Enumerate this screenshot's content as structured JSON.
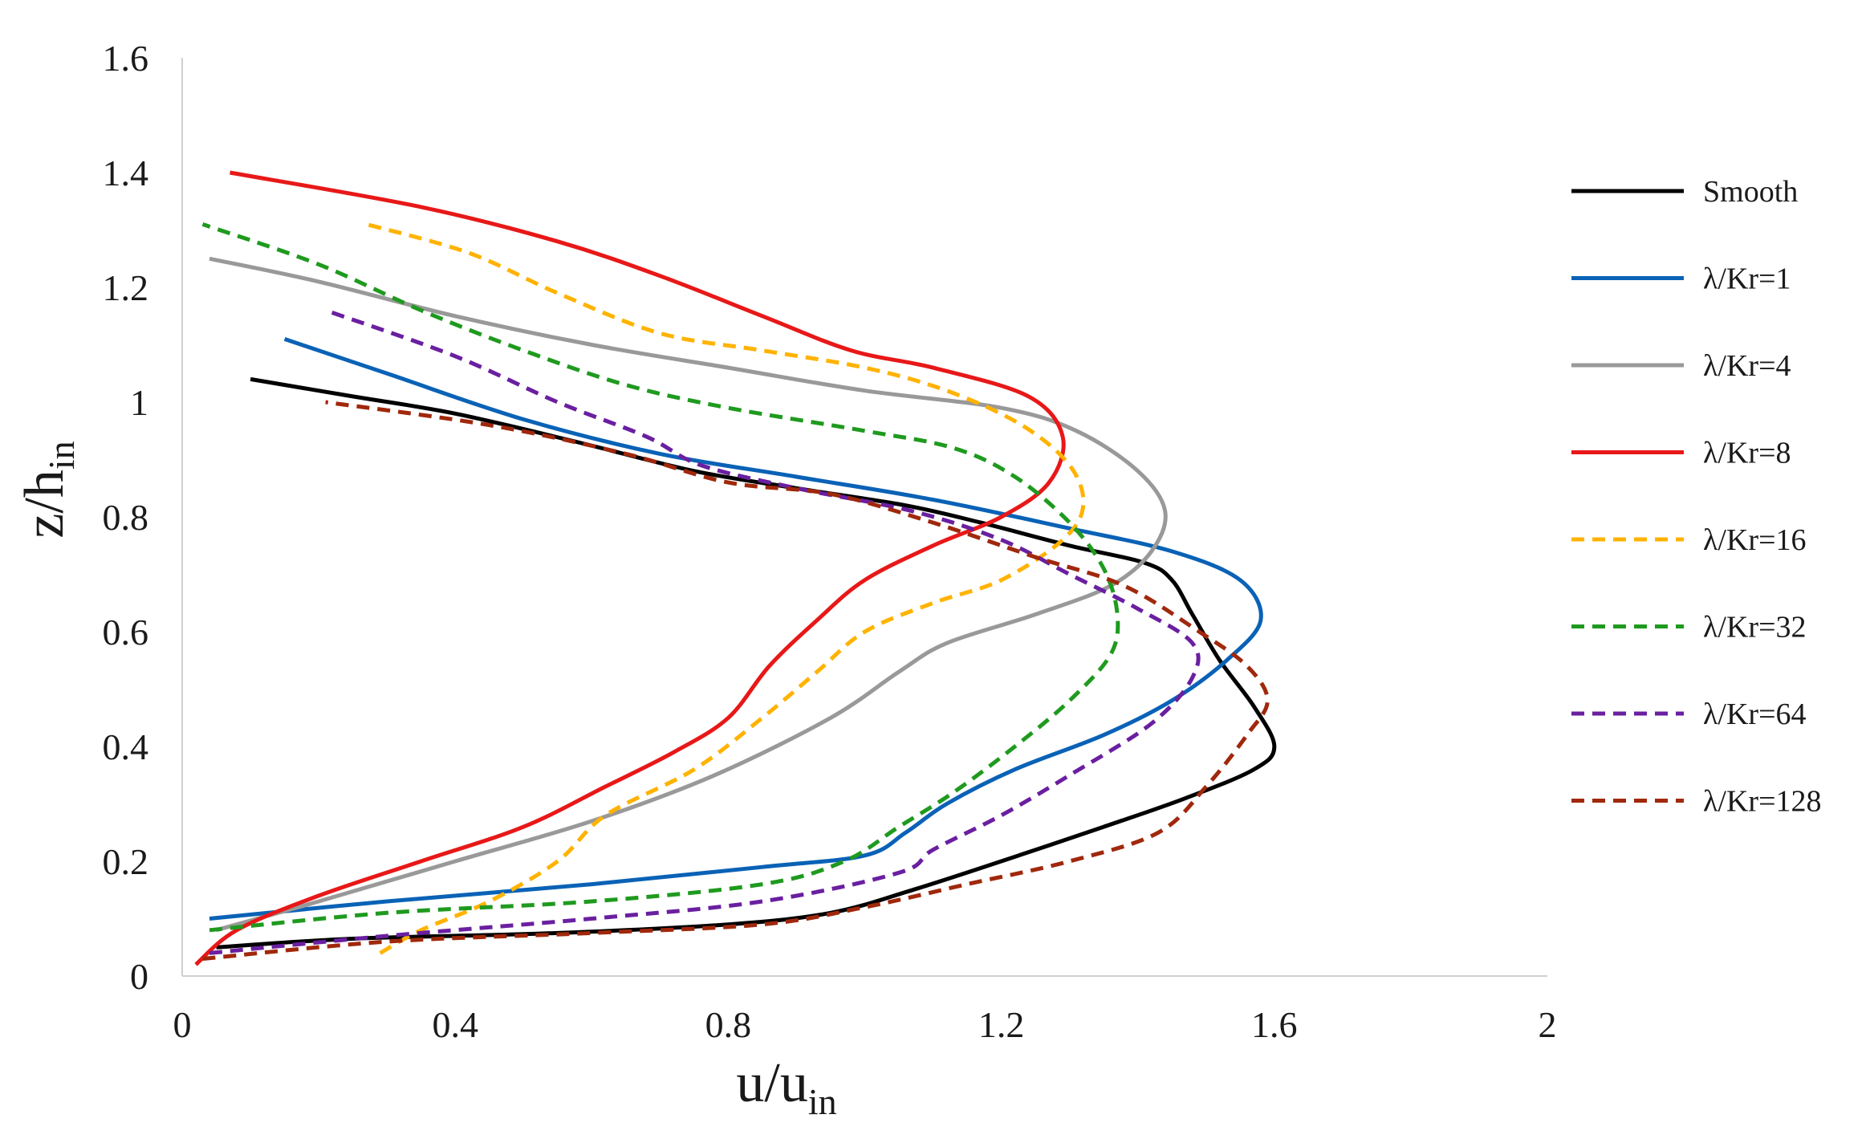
{
  "chart_data": {
    "type": "line",
    "title": "",
    "xlabel": "u/u",
    "xlabel_subscript": "in",
    "ylabel": "z/h",
    "ylabel_subscript": "in",
    "xlim": [
      0,
      2
    ],
    "ylim": [
      0,
      1.6
    ],
    "xticks": [
      "0",
      "0.4",
      "0.8",
      "1.2",
      "1.6",
      "2"
    ],
    "yticks": [
      "0",
      "0.2",
      "0.4",
      "0.6",
      "0.8",
      "1",
      "1.2",
      "1.4",
      "1.6"
    ],
    "grid": false,
    "legend_position": "right",
    "series": [
      {
        "name": "Smooth",
        "color": "#000000",
        "dash": "solid",
        "points": [
          [
            0.05,
            0.05
          ],
          [
            0.25,
            0.065
          ],
          [
            0.55,
            0.075
          ],
          [
            0.8,
            0.09
          ],
          [
            0.95,
            0.11
          ],
          [
            1.07,
            0.15
          ],
          [
            1.2,
            0.2
          ],
          [
            1.35,
            0.26
          ],
          [
            1.47,
            0.31
          ],
          [
            1.57,
            0.36
          ],
          [
            1.6,
            0.4
          ],
          [
            1.57,
            0.47
          ],
          [
            1.52,
            0.55
          ],
          [
            1.48,
            0.63
          ],
          [
            1.45,
            0.69
          ],
          [
            1.41,
            0.72
          ],
          [
            1.3,
            0.75
          ],
          [
            1.17,
            0.79
          ],
          [
            1.06,
            0.82
          ],
          [
            0.9,
            0.85
          ],
          [
            0.75,
            0.88
          ],
          [
            0.58,
            0.93
          ],
          [
            0.4,
            0.98
          ],
          [
            0.25,
            1.01
          ],
          [
            0.1,
            1.04
          ]
        ]
      },
      {
        "name": "λ/Kr=1",
        "color": "#0a62b6",
        "dash": "solid",
        "points": [
          [
            0.04,
            0.1
          ],
          [
            0.3,
            0.13
          ],
          [
            0.6,
            0.16
          ],
          [
            0.85,
            0.19
          ],
          [
            1.0,
            0.21
          ],
          [
            1.06,
            0.25
          ],
          [
            1.12,
            0.3
          ],
          [
            1.22,
            0.36
          ],
          [
            1.35,
            0.42
          ],
          [
            1.45,
            0.48
          ],
          [
            1.53,
            0.55
          ],
          [
            1.58,
            0.62
          ],
          [
            1.55,
            0.69
          ],
          [
            1.45,
            0.74
          ],
          [
            1.3,
            0.78
          ],
          [
            1.1,
            0.83
          ],
          [
            0.9,
            0.87
          ],
          [
            0.7,
            0.91
          ],
          [
            0.5,
            0.97
          ],
          [
            0.3,
            1.05
          ],
          [
            0.15,
            1.11
          ]
        ]
      },
      {
        "name": "λ/Kr=4",
        "color": "#999999",
        "dash": "solid",
        "points": [
          [
            0.05,
            0.08
          ],
          [
            0.2,
            0.13
          ],
          [
            0.4,
            0.2
          ],
          [
            0.6,
            0.27
          ],
          [
            0.78,
            0.35
          ],
          [
            0.95,
            0.45
          ],
          [
            1.05,
            0.53
          ],
          [
            1.12,
            0.58
          ],
          [
            1.25,
            0.63
          ],
          [
            1.36,
            0.68
          ],
          [
            1.42,
            0.74
          ],
          [
            1.44,
            0.81
          ],
          [
            1.4,
            0.88
          ],
          [
            1.31,
            0.95
          ],
          [
            1.2,
            0.99
          ],
          [
            1.0,
            1.02
          ],
          [
            0.8,
            1.06
          ],
          [
            0.6,
            1.1
          ],
          [
            0.4,
            1.15
          ],
          [
            0.2,
            1.21
          ],
          [
            0.04,
            1.25
          ]
        ]
      },
      {
        "name": "λ/Kr=8",
        "color": "#e81818",
        "dash": "solid",
        "points": [
          [
            0.02,
            0.02
          ],
          [
            0.08,
            0.08
          ],
          [
            0.2,
            0.14
          ],
          [
            0.35,
            0.2
          ],
          [
            0.5,
            0.26
          ],
          [
            0.62,
            0.33
          ],
          [
            0.72,
            0.39
          ],
          [
            0.8,
            0.45
          ],
          [
            0.86,
            0.54
          ],
          [
            0.93,
            0.62
          ],
          [
            1.0,
            0.69
          ],
          [
            1.1,
            0.75
          ],
          [
            1.2,
            0.8
          ],
          [
            1.27,
            0.86
          ],
          [
            1.29,
            0.94
          ],
          [
            1.24,
            1.01
          ],
          [
            1.1,
            1.06
          ],
          [
            0.98,
            1.09
          ],
          [
            0.85,
            1.15
          ],
          [
            0.7,
            1.22
          ],
          [
            0.55,
            1.28
          ],
          [
            0.35,
            1.34
          ],
          [
            0.07,
            1.4
          ]
        ]
      },
      {
        "name": "λ/Kr=16",
        "color": "#ffb300",
        "dash": "dashed",
        "points": [
          [
            0.29,
            0.04
          ],
          [
            0.35,
            0.08
          ],
          [
            0.45,
            0.13
          ],
          [
            0.55,
            0.2
          ],
          [
            0.62,
            0.28
          ],
          [
            0.75,
            0.36
          ],
          [
            0.85,
            0.45
          ],
          [
            0.93,
            0.53
          ],
          [
            1.0,
            0.6
          ],
          [
            1.1,
            0.65
          ],
          [
            1.2,
            0.69
          ],
          [
            1.29,
            0.76
          ],
          [
            1.32,
            0.82
          ],
          [
            1.3,
            0.89
          ],
          [
            1.23,
            0.96
          ],
          [
            1.12,
            1.02
          ],
          [
            1.0,
            1.06
          ],
          [
            0.85,
            1.09
          ],
          [
            0.7,
            1.12
          ],
          [
            0.55,
            1.19
          ],
          [
            0.42,
            1.26
          ],
          [
            0.27,
            1.31
          ]
        ]
      },
      {
        "name": "λ/Kr=32",
        "color": "#1f9a1f",
        "dash": "dashed",
        "points": [
          [
            0.04,
            0.08
          ],
          [
            0.3,
            0.11
          ],
          [
            0.6,
            0.13
          ],
          [
            0.85,
            0.16
          ],
          [
            0.97,
            0.2
          ],
          [
            1.05,
            0.26
          ],
          [
            1.13,
            0.32
          ],
          [
            1.22,
            0.4
          ],
          [
            1.3,
            0.48
          ],
          [
            1.36,
            0.56
          ],
          [
            1.37,
            0.63
          ],
          [
            1.35,
            0.71
          ],
          [
            1.3,
            0.79
          ],
          [
            1.22,
            0.87
          ],
          [
            1.13,
            0.92
          ],
          [
            1.0,
            0.95
          ],
          [
            0.8,
            0.99
          ],
          [
            0.65,
            1.03
          ],
          [
            0.5,
            1.09
          ],
          [
            0.35,
            1.16
          ],
          [
            0.2,
            1.24
          ],
          [
            0.03,
            1.31
          ]
        ]
      },
      {
        "name": "λ/Kr=64",
        "color": "#6a1fa0",
        "dash": "dashed",
        "points": [
          [
            0.04,
            0.04
          ],
          [
            0.3,
            0.07
          ],
          [
            0.6,
            0.1
          ],
          [
            0.85,
            0.13
          ],
          [
            1.05,
            0.18
          ],
          [
            1.1,
            0.22
          ],
          [
            1.2,
            0.28
          ],
          [
            1.3,
            0.35
          ],
          [
            1.42,
            0.44
          ],
          [
            1.48,
            0.52
          ],
          [
            1.48,
            0.58
          ],
          [
            1.4,
            0.64
          ],
          [
            1.3,
            0.7
          ],
          [
            1.2,
            0.76
          ],
          [
            1.07,
            0.81
          ],
          [
            0.9,
            0.85
          ],
          [
            0.76,
            0.89
          ],
          [
            0.68,
            0.94
          ],
          [
            0.55,
            1.0
          ],
          [
            0.4,
            1.08
          ],
          [
            0.21,
            1.16
          ]
        ]
      },
      {
        "name": "λ/Kr=128",
        "color": "#a0280c",
        "dash": "dashed",
        "points": [
          [
            0.03,
            0.03
          ],
          [
            0.3,
            0.06
          ],
          [
            0.6,
            0.075
          ],
          [
            0.85,
            0.09
          ],
          [
            1.0,
            0.12
          ],
          [
            1.15,
            0.16
          ],
          [
            1.3,
            0.2
          ],
          [
            1.43,
            0.25
          ],
          [
            1.5,
            0.33
          ],
          [
            1.56,
            0.42
          ],
          [
            1.59,
            0.48
          ],
          [
            1.56,
            0.54
          ],
          [
            1.49,
            0.6
          ],
          [
            1.38,
            0.68
          ],
          [
            1.25,
            0.73
          ],
          [
            1.1,
            0.79
          ],
          [
            0.95,
            0.84
          ],
          [
            0.8,
            0.86
          ],
          [
            0.65,
            0.91
          ],
          [
            0.45,
            0.96
          ],
          [
            0.21,
            1.0
          ]
        ]
      }
    ]
  }
}
